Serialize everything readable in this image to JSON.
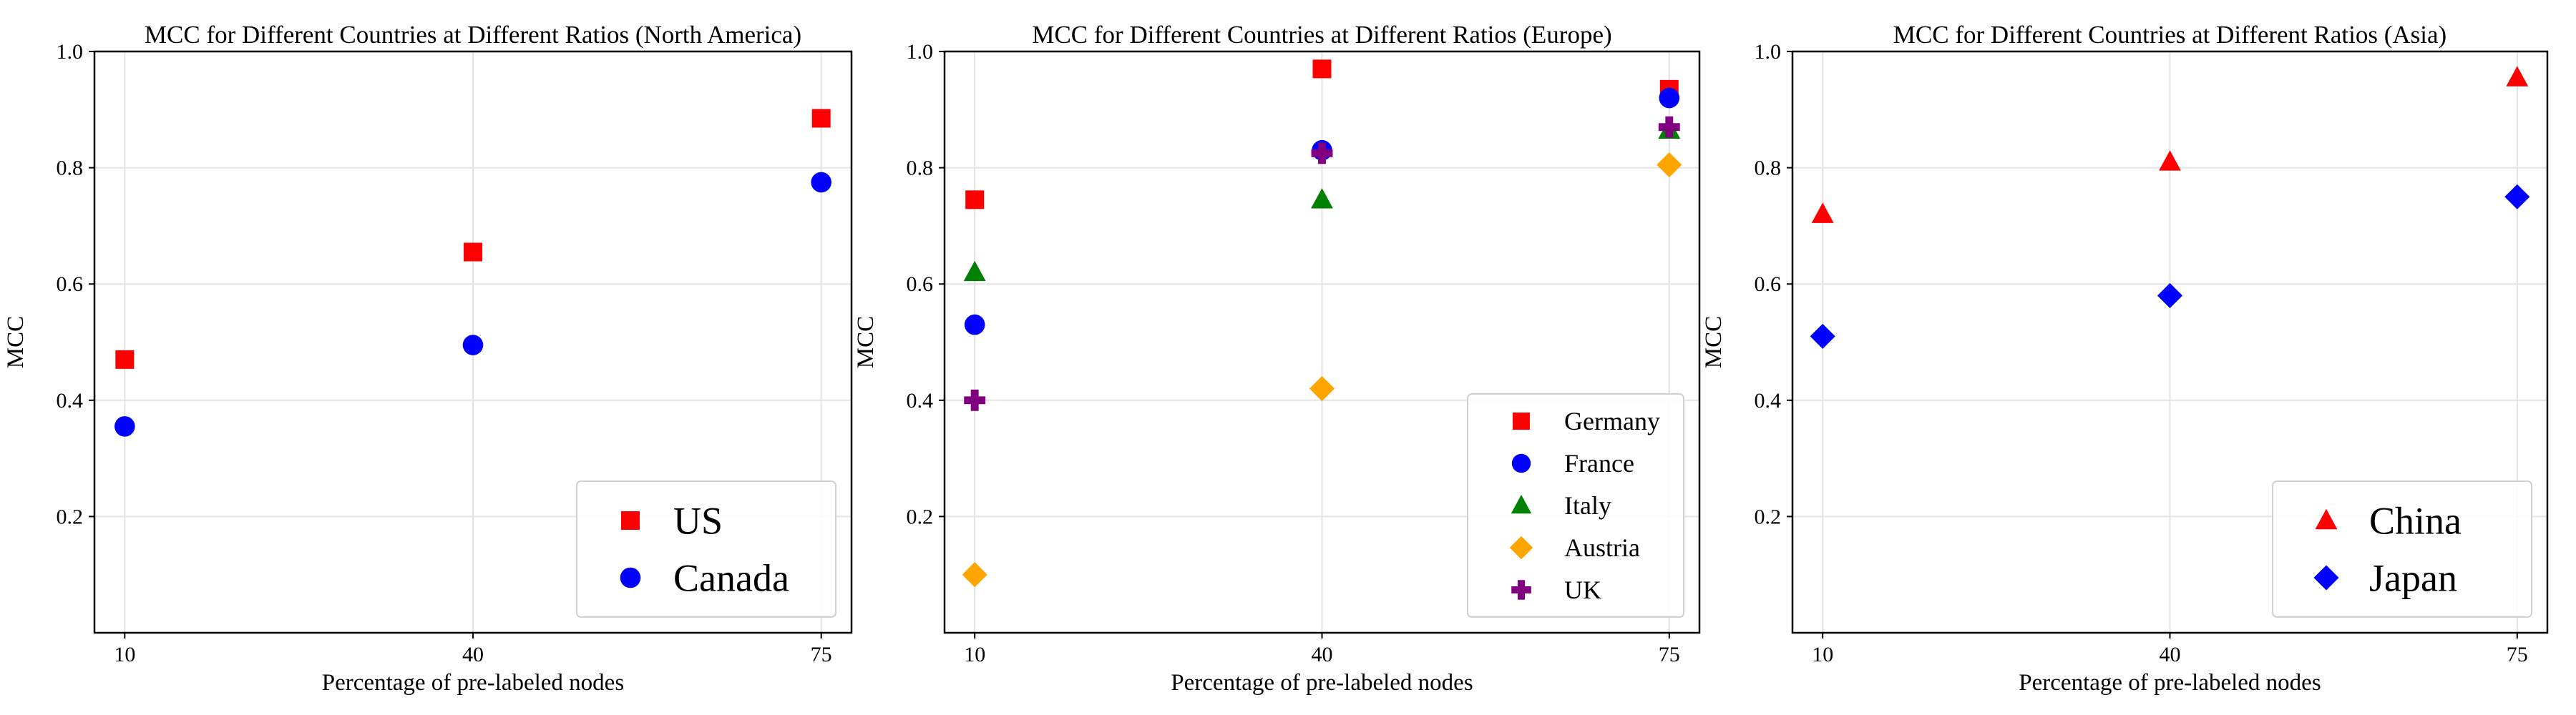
{
  "chart_data": [
    {
      "type": "scatter",
      "title": "MCC for Different Countries at Different Ratios (North America)",
      "xlabel": "Percentage of pre-labeled nodes",
      "ylabel": "MCC",
      "x_tick_labels": [
        "10",
        "40",
        "75"
      ],
      "y_ticks": [
        0.2,
        0.4,
        0.6,
        0.8,
        1.0
      ],
      "y_tick_labels": [
        "0.2",
        "0.4",
        "0.6",
        "0.8",
        "1.0"
      ],
      "ylim": [
        0.0,
        1.0
      ],
      "grid": true,
      "legend": "bottom-right",
      "legend_size": "large",
      "series": [
        {
          "name": "US",
          "marker": "square",
          "color": "#ff0000",
          "values": [
            0.47,
            0.655,
            0.885
          ]
        },
        {
          "name": "Canada",
          "marker": "circle",
          "color": "#0000ff",
          "values": [
            0.355,
            0.495,
            0.775
          ]
        }
      ]
    },
    {
      "type": "scatter",
      "title": "MCC for Different Countries at Different Ratios (Europe)",
      "xlabel": "Percentage of pre-labeled nodes",
      "ylabel": "MCC",
      "x_tick_labels": [
        "10",
        "40",
        "75"
      ],
      "y_ticks": [
        0.2,
        0.4,
        0.6,
        0.8,
        1.0
      ],
      "y_tick_labels": [
        "0.2",
        "0.4",
        "0.6",
        "0.8",
        "1.0"
      ],
      "ylim": [
        0.0,
        1.0
      ],
      "grid": true,
      "legend": "bottom-right",
      "legend_size": "normal",
      "series": [
        {
          "name": "Germany",
          "marker": "square",
          "color": "#ff0000",
          "values": [
            0.745,
            0.97,
            0.935
          ]
        },
        {
          "name": "France",
          "marker": "circle",
          "color": "#0000ff",
          "values": [
            0.53,
            0.83,
            0.92
          ]
        },
        {
          "name": "Italy",
          "marker": "triangle",
          "color": "#008000",
          "values": [
            0.62,
            0.745,
            0.865
          ]
        },
        {
          "name": "Austria",
          "marker": "diamond",
          "color": "#ffa500",
          "values": [
            0.1,
            0.42,
            0.805
          ]
        },
        {
          "name": "UK",
          "marker": "plus",
          "color": "#800080",
          "values": [
            0.4,
            0.825,
            0.87
          ]
        }
      ]
    },
    {
      "type": "scatter",
      "title": "MCC for Different Countries at Different Ratios (Asia)",
      "xlabel": "Percentage of pre-labeled nodes",
      "ylabel": "MCC",
      "x_tick_labels": [
        "10",
        "40",
        "75"
      ],
      "y_ticks": [
        0.2,
        0.4,
        0.6,
        0.8,
        1.0
      ],
      "y_tick_labels": [
        "0.2",
        "0.4",
        "0.6",
        "0.8",
        "1.0"
      ],
      "ylim": [
        0.0,
        1.0
      ],
      "grid": true,
      "legend": "bottom-right",
      "legend_size": "large",
      "series": [
        {
          "name": "China",
          "marker": "triangle",
          "color": "#ff0000",
          "values": [
            0.72,
            0.81,
            0.955
          ]
        },
        {
          "name": "Japan",
          "marker": "diamond",
          "color": "#0000ff",
          "values": [
            0.51,
            0.58,
            0.75
          ]
        }
      ]
    }
  ]
}
